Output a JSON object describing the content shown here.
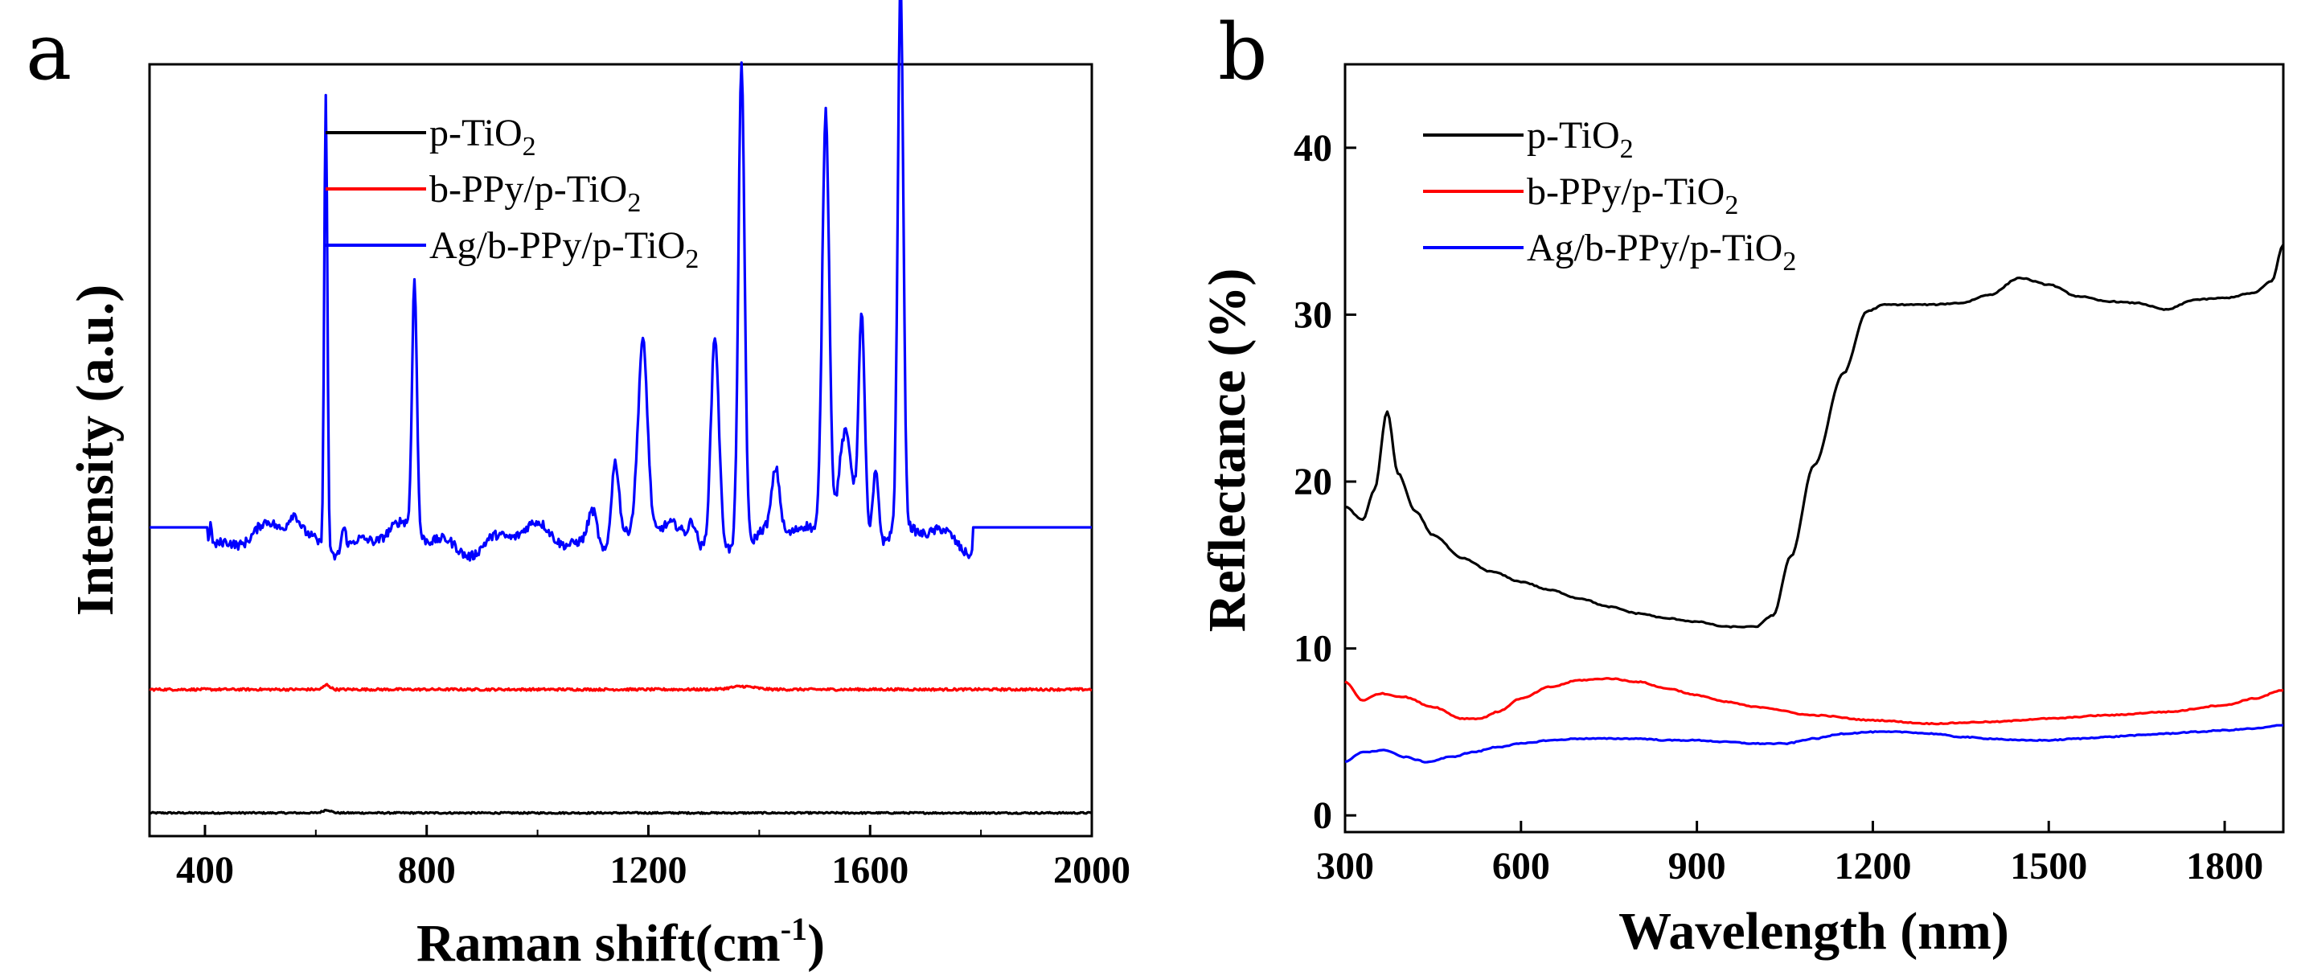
{
  "chart_data": [
    {
      "panel": "a",
      "type": "line",
      "xlabel": "Raman shift(cm",
      "xlabel_sup": "-1",
      "xlabel_close": ")",
      "ylabel": "Intensity (a.u.)",
      "xlim": [
        300,
        2000
      ],
      "ylim": [
        0,
        1
      ],
      "xticks": [
        400,
        800,
        1200,
        1600,
        2000
      ],
      "yticks": [],
      "legend_position": "top-left",
      "series": [
        {
          "name": "p-TiO",
          "sub": "2",
          "color": "#000000",
          "offset": 0.03,
          "peaks": [
            [
              620,
              0.004,
              10
            ]
          ],
          "noise": 0.002,
          "range": [
            300,
            2000
          ]
        },
        {
          "name": "b-PPy/p-TiO",
          "sub": "2",
          "color": "#ff0000",
          "offset": 0.19,
          "peaks": [
            [
              620,
              0.006,
              8
            ],
            [
              1370,
              0.004,
              30
            ]
          ],
          "noise": 0.003,
          "range": [
            300,
            2000
          ]
        },
        {
          "name": "Ag/b-PPy/p-TiO",
          "sub": "2",
          "color": "#0000ff",
          "offset": 0.4,
          "raman_range": [
            405,
            1785
          ],
          "baseline": 0.4,
          "peaks": [
            [
              410,
              0.03,
              4
            ],
            [
              560,
              0.03,
              15
            ],
            [
              618,
              0.59,
              4
            ],
            [
              650,
              0.03,
              6
            ],
            [
              778,
              0.33,
              6
            ],
            [
              1100,
              0.05,
              12
            ],
            [
              1140,
              0.11,
              10
            ],
            [
              1190,
              0.25,
              12
            ],
            [
              1280,
              0.03,
              10
            ],
            [
              1320,
              0.27,
              10
            ],
            [
              1368,
              0.63,
              8
            ],
            [
              1430,
              0.08,
              10
            ],
            [
              1520,
              0.56,
              9
            ],
            [
              1555,
              0.15,
              18
            ],
            [
              1585,
              0.29,
              8
            ],
            [
              1610,
              0.1,
              8
            ],
            [
              1655,
              0.71,
              7
            ]
          ],
          "noise": 0.012
        }
      ]
    },
    {
      "panel": "b",
      "type": "line",
      "xlabel": "Wavelength (nm)",
      "ylabel": "Reflectance (%)",
      "xlim": [
        300,
        1900
      ],
      "ylim": [
        -1,
        45
      ],
      "xticks": [
        300,
        600,
        900,
        1200,
        1500,
        1800
      ],
      "yticks": [
        0,
        10,
        20,
        30,
        40
      ],
      "legend_position": "top-left",
      "series": [
        {
          "name": "p-TiO",
          "sub": "2",
          "color": "#000000",
          "x": [
            300,
            330,
            350,
            372,
            390,
            420,
            450,
            500,
            550,
            600,
            650,
            700,
            750,
            800,
            850,
            900,
            950,
            1000,
            1030,
            1060,
            1100,
            1150,
            1190,
            1220,
            1250,
            1300,
            1350,
            1400,
            1450,
            1500,
            1550,
            1600,
            1650,
            1700,
            1750,
            1800,
            1850,
            1880,
            1900
          ],
          "y": [
            18.5,
            17.7,
            19.5,
            24.2,
            20.5,
            18.2,
            16.8,
            15.4,
            14.6,
            14.0,
            13.5,
            13.0,
            12.5,
            12.1,
            11.8,
            11.6,
            11.3,
            11.3,
            12.0,
            15.5,
            21.0,
            26.5,
            30.2,
            30.6,
            30.6,
            30.6,
            30.7,
            31.2,
            32.2,
            31.8,
            31.1,
            30.8,
            30.7,
            30.3,
            30.9,
            31.0,
            31.3,
            32.0,
            34.2
          ]
        },
        {
          "name": "b-PPy/p-TiO",
          "sub": "2",
          "color": "#ff0000",
          "x": [
            300,
            330,
            360,
            400,
            450,
            500,
            530,
            560,
            600,
            650,
            700,
            750,
            800,
            850,
            900,
            950,
            1000,
            1100,
            1200,
            1300,
            1400,
            1500,
            1600,
            1700,
            1800,
            1850,
            1900
          ],
          "y": [
            8.0,
            6.9,
            7.3,
            7.1,
            6.5,
            5.8,
            5.8,
            6.2,
            7.0,
            7.7,
            8.1,
            8.2,
            8.0,
            7.6,
            7.2,
            6.8,
            6.5,
            6.0,
            5.7,
            5.5,
            5.6,
            5.8,
            6.0,
            6.2,
            6.6,
            7.0,
            7.5
          ]
        },
        {
          "name": "Ag/b-PPy/p-TiO",
          "sub": "2",
          "color": "#0000ff",
          "x": [
            300,
            330,
            370,
            400,
            440,
            480,
            520,
            560,
            600,
            650,
            700,
            750,
            800,
            850,
            900,
            950,
            1000,
            1050,
            1100,
            1150,
            1200,
            1250,
            1300,
            1350,
            1400,
            1450,
            1500,
            1550,
            1600,
            1650,
            1700,
            1750,
            1800,
            1850,
            1900
          ],
          "y": [
            3.2,
            3.8,
            3.9,
            3.5,
            3.2,
            3.5,
            3.8,
            4.1,
            4.3,
            4.5,
            4.6,
            4.6,
            4.6,
            4.5,
            4.5,
            4.4,
            4.3,
            4.3,
            4.6,
            4.9,
            5.0,
            5.0,
            4.9,
            4.7,
            4.6,
            4.5,
            4.5,
            4.6,
            4.7,
            4.8,
            4.9,
            5.0,
            5.1,
            5.2,
            5.4
          ]
        }
      ]
    }
  ]
}
